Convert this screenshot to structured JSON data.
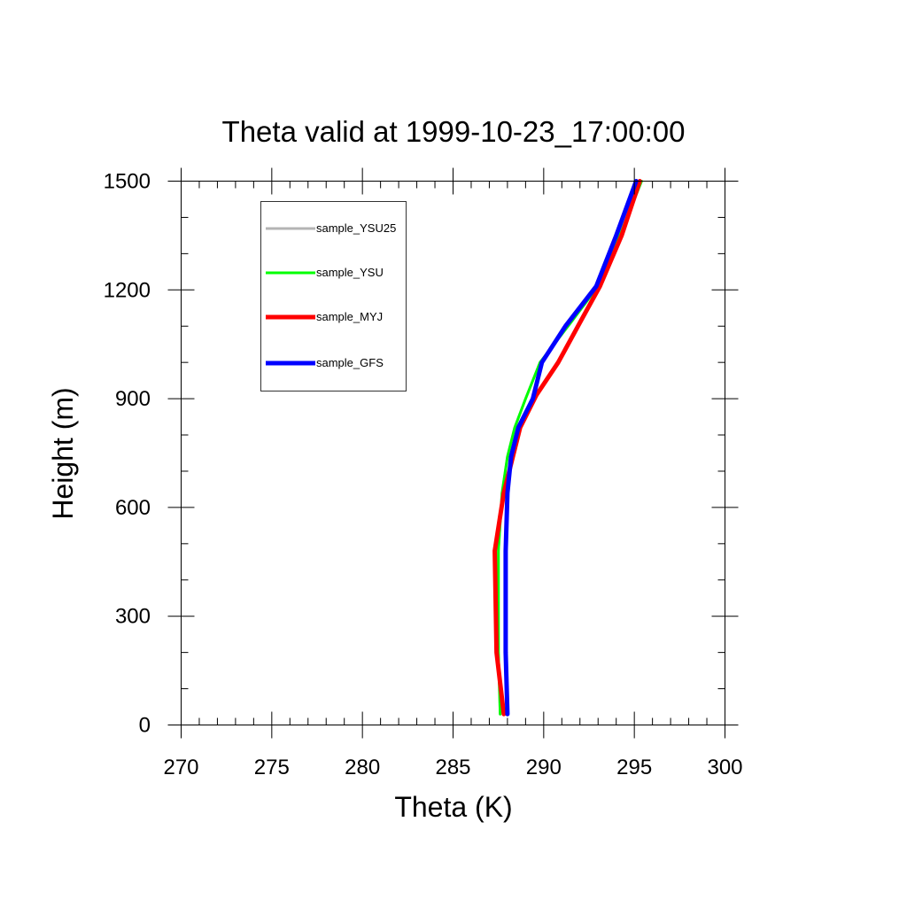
{
  "chart_data": {
    "type": "line",
    "title": "Theta valid at 1999-10-23_17:00:00",
    "xlabel": "Theta (K)",
    "ylabel": "Height (m)",
    "xlim": [
      270,
      300
    ],
    "ylim": [
      0,
      1500
    ],
    "xticks": [
      270,
      275,
      280,
      285,
      290,
      295,
      300
    ],
    "xtick_labels": [
      "270",
      "275",
      "280",
      "285",
      "290",
      "295",
      "300"
    ],
    "yticks": [
      0,
      300,
      600,
      900,
      1200,
      1500
    ],
    "ytick_labels": [
      "0",
      "300",
      "600",
      "900",
      "1200",
      "1500"
    ],
    "x_minor_step": 1,
    "y_minor_step": 100,
    "grid": false,
    "legend_position": "top-left",
    "series": [
      {
        "name": "sample_YSU25",
        "color": "#b4b4b4",
        "values": [
          [
            287.6,
            30
          ],
          [
            287.5,
            200
          ],
          [
            287.5,
            480
          ],
          [
            287.7,
            640
          ],
          [
            288.0,
            740
          ],
          [
            288.4,
            820
          ],
          [
            289.0,
            900
          ],
          [
            289.8,
            1000
          ],
          [
            291.5,
            1110
          ],
          [
            293.0,
            1210
          ],
          [
            294.2,
            1350
          ],
          [
            295.3,
            1500
          ]
        ]
      },
      {
        "name": "sample_YSU",
        "color": "#00ff00",
        "values": [
          [
            287.6,
            30
          ],
          [
            287.5,
            200
          ],
          [
            287.5,
            480
          ],
          [
            287.7,
            640
          ],
          [
            288.0,
            740
          ],
          [
            288.4,
            820
          ],
          [
            289.0,
            900
          ],
          [
            289.8,
            1000
          ],
          [
            291.5,
            1110
          ],
          [
            293.0,
            1210
          ],
          [
            294.2,
            1350
          ],
          [
            295.4,
            1500
          ]
        ]
      },
      {
        "name": "sample_MYJ",
        "color": "#ff0000",
        "values": [
          [
            287.8,
            30
          ],
          [
            287.4,
            200
          ],
          [
            287.3,
            480
          ],
          [
            287.8,
            640
          ],
          [
            288.3,
            740
          ],
          [
            288.7,
            820
          ],
          [
            289.6,
            910
          ],
          [
            290.8,
            1000
          ],
          [
            292.0,
            1110
          ],
          [
            293.1,
            1210
          ],
          [
            294.3,
            1350
          ],
          [
            295.3,
            1500
          ]
        ]
      },
      {
        "name": "sample_GFS",
        "color": "#0000ff",
        "values": [
          [
            288.0,
            30
          ],
          [
            287.9,
            200
          ],
          [
            287.9,
            480
          ],
          [
            288.0,
            640
          ],
          [
            288.2,
            740
          ],
          [
            288.6,
            820
          ],
          [
            289.4,
            900
          ],
          [
            289.9,
            1000
          ],
          [
            291.2,
            1100
          ],
          [
            292.9,
            1210
          ],
          [
            294.0,
            1350
          ],
          [
            295.1,
            1500
          ]
        ]
      }
    ]
  }
}
